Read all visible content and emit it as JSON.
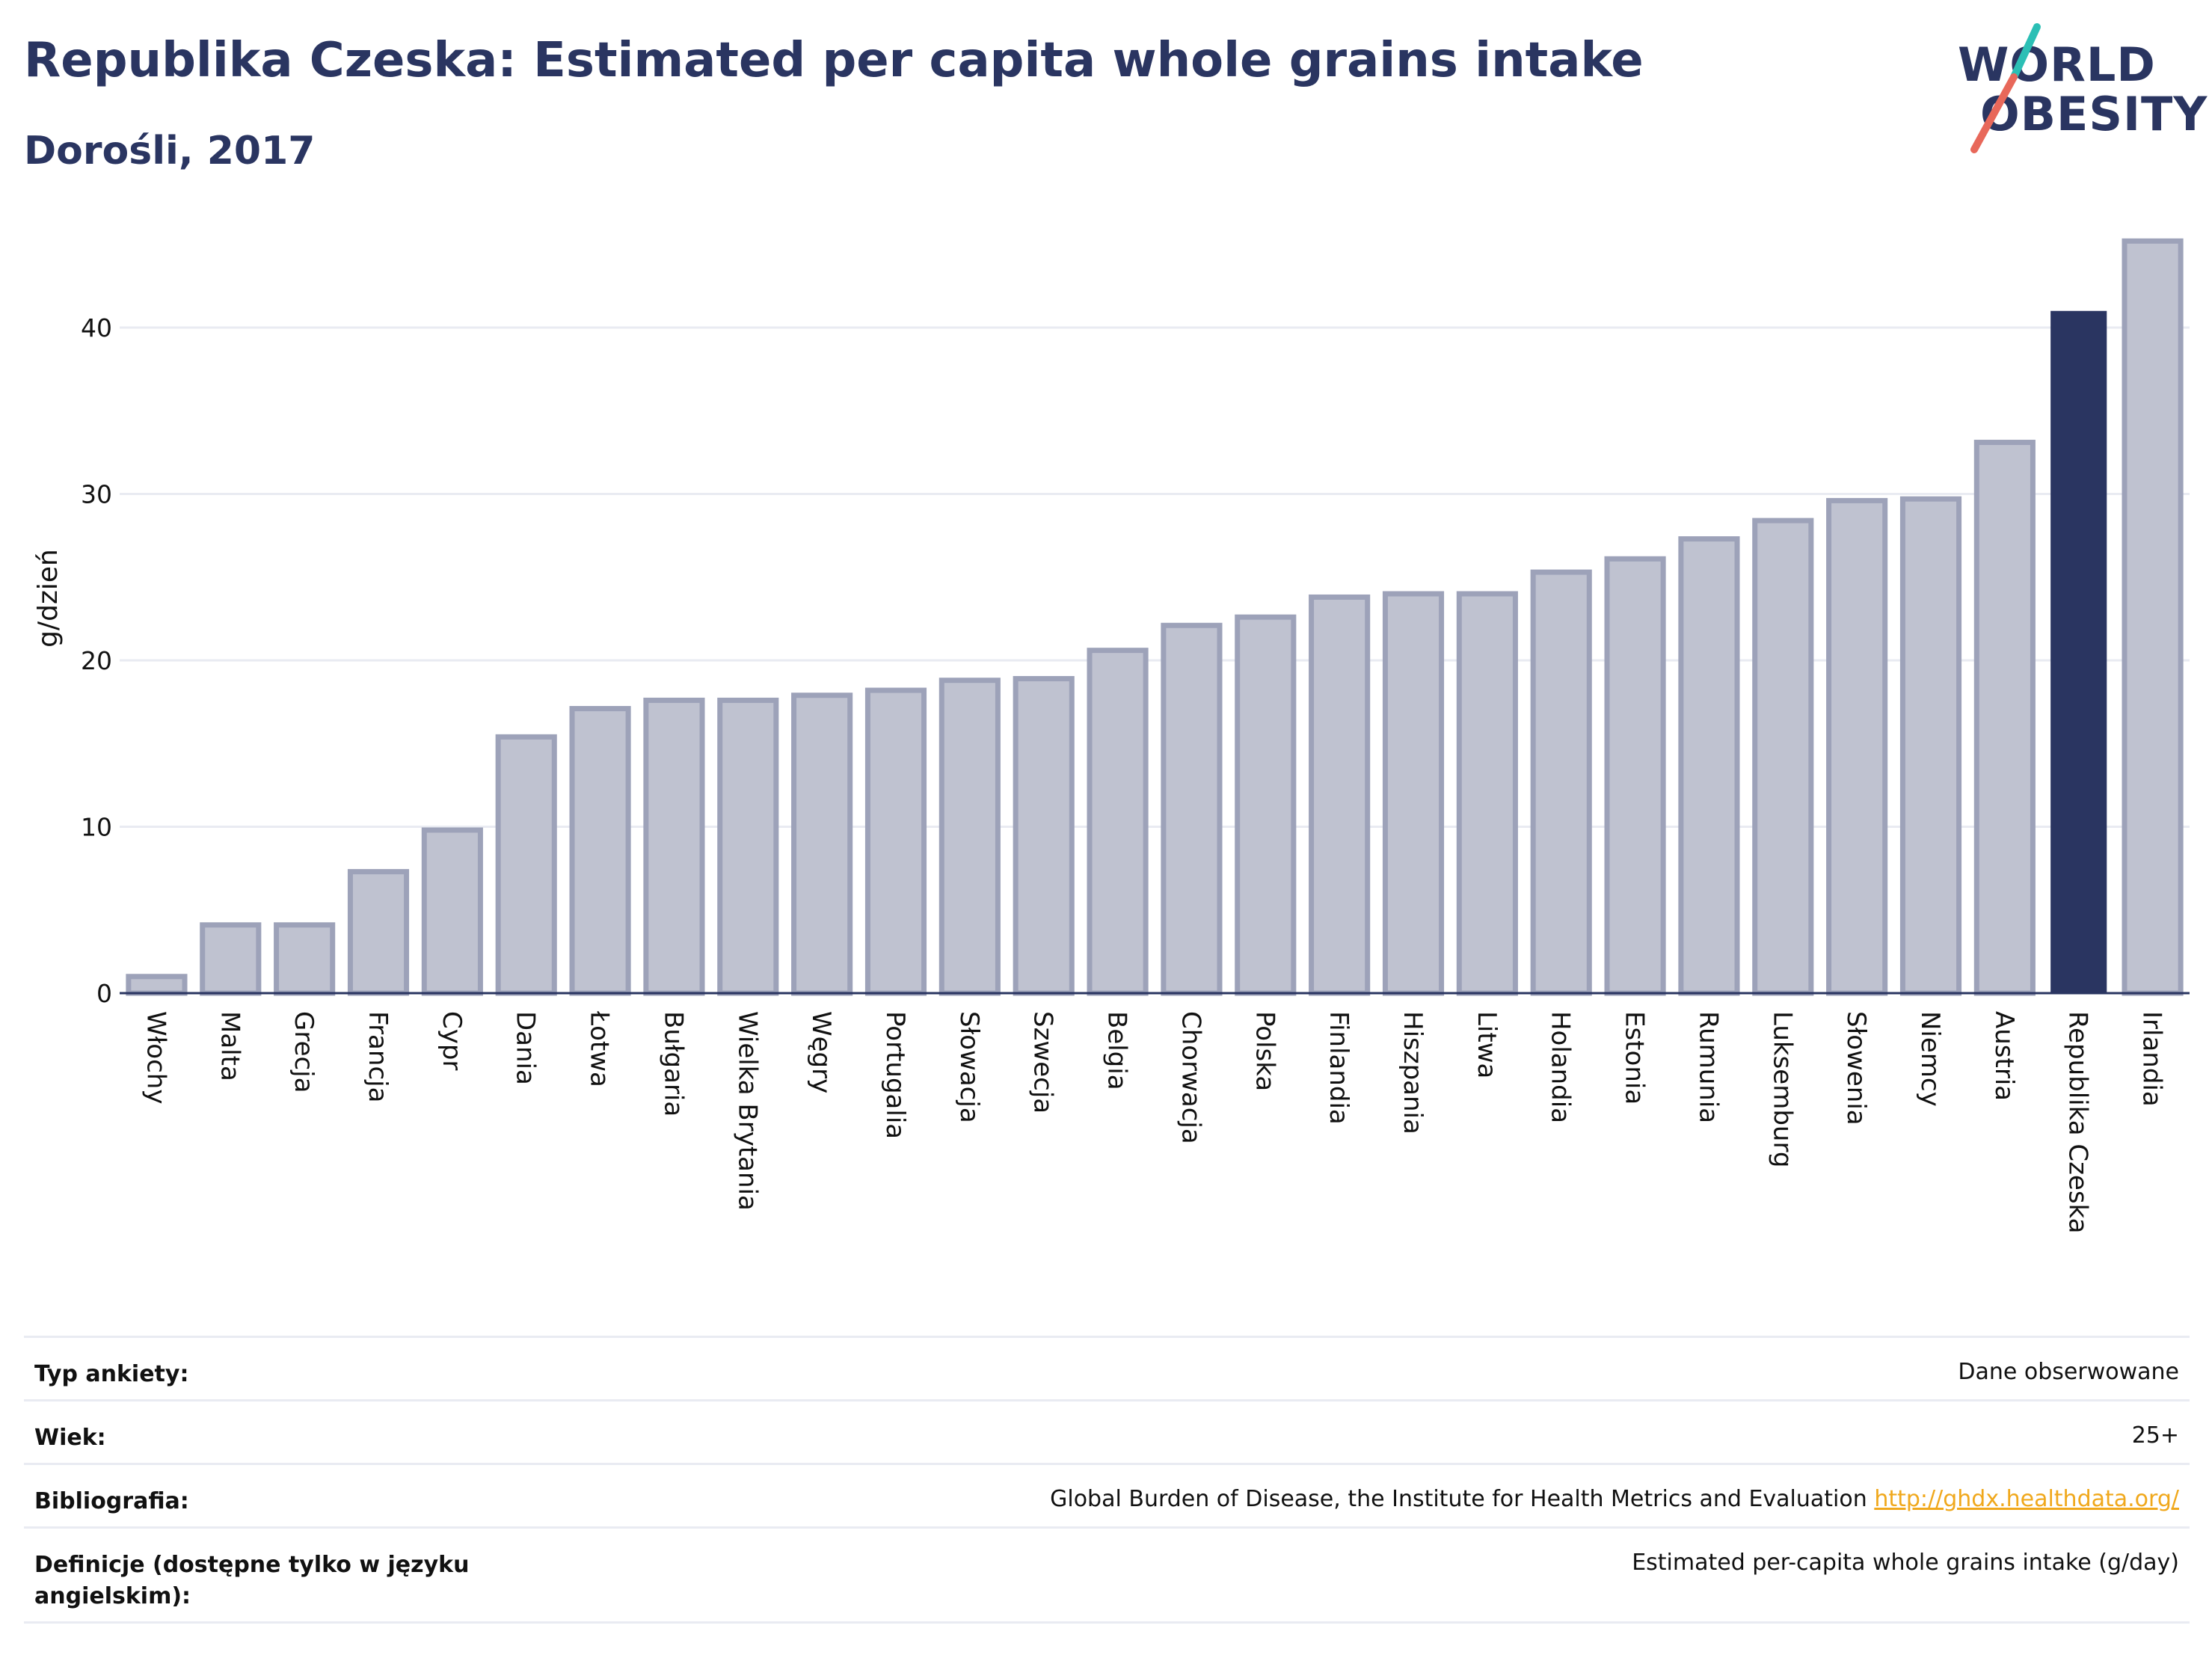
{
  "header": {
    "title": "Republika Czeska: Estimated per capita whole grains intake",
    "subtitle": "Dorośli, 2017"
  },
  "logo": {
    "line1": "WORLD",
    "line2": "OBESITY",
    "colors": {
      "navy": "#2a3561",
      "teal": "#2bbfb5",
      "coral": "#e8685a"
    }
  },
  "chart_data": {
    "type": "bar",
    "title": "Republika Czeska: Estimated per capita whole grains intake",
    "subtitle": "Dorośli, 2017",
    "xlabel": "",
    "ylabel": "g/dzień",
    "ylim": [
      0,
      46
    ],
    "yticks": [
      0,
      10,
      20,
      30,
      40
    ],
    "grid": true,
    "legend": "none",
    "categories": [
      "Włochy",
      "Malta",
      "Grecja",
      "Francja",
      "Cypr",
      "Dania",
      "Łotwa",
      "Bułgaria",
      "Wielka Brytania",
      "Węgry",
      "Portugalia",
      "Słowacja",
      "Szwecja",
      "Belgia",
      "Chorwacja",
      "Polska",
      "Finlandia",
      "Hiszpania",
      "Litwa",
      "Holandia",
      "Estonia",
      "Rumunia",
      "Luksemburg",
      "Słowenia",
      "Niemcy",
      "Austria",
      "Republika Czeska",
      "Irlandia"
    ],
    "values": [
      1.0,
      4.1,
      4.1,
      7.3,
      9.8,
      15.4,
      17.1,
      17.6,
      17.6,
      17.9,
      18.2,
      18.8,
      18.9,
      20.6,
      22.1,
      22.6,
      23.8,
      24.0,
      24.0,
      25.3,
      26.1,
      27.3,
      28.4,
      29.6,
      29.7,
      33.1,
      41.0,
      45.2
    ],
    "highlight": "Republika Czeska",
    "colors": {
      "bar": "#bfc2d0",
      "bar_border": "#9da2b9",
      "highlight": "#2a3561",
      "grid": "#e9ebf2",
      "axis": "#2a3561"
    }
  },
  "info": {
    "rows": [
      {
        "label": "Typ ankiety:",
        "value": "Dane obserwowane"
      },
      {
        "label": "Wiek:",
        "value": "25+"
      },
      {
        "label": "Bibliografia:",
        "value": "Global Burden of Disease, the Institute for Health Metrics and Evaluation",
        "link": "http://ghdx.healthdata.org/"
      },
      {
        "label": "Definicje (dostępne tylko w języku angielskim):",
        "value": "Estimated per-capita whole grains intake (g/day)"
      }
    ]
  }
}
